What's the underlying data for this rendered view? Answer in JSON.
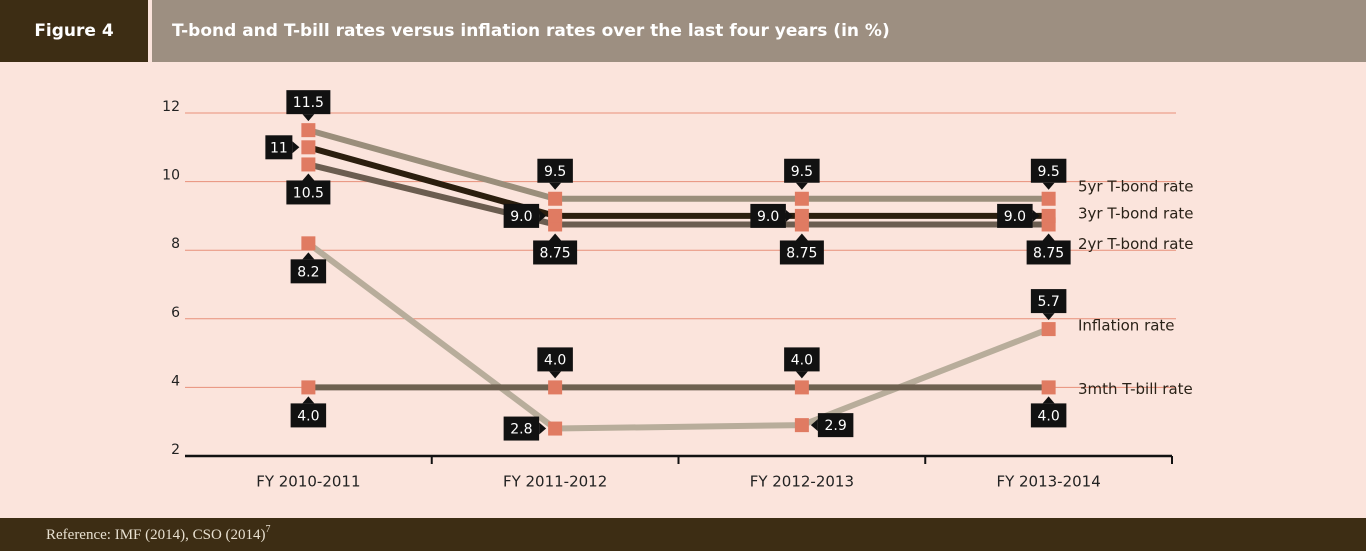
{
  "figure_label": "Figure 4",
  "reference": "Reference: IMF (2014), CSO (2014)",
  "reference_note": "7",
  "chart_data": {
    "type": "line",
    "title": "T-bond and T-bill rates versus inflation rates over the last four years (in %)",
    "categories": [
      "FY 2010-2011",
      "FY 2011-2012",
      "FY 2012-2013",
      "FY 2013-2014"
    ],
    "ylim": [
      2,
      12
    ],
    "yticks": [
      2,
      4,
      6,
      8,
      10,
      12
    ],
    "grid": true,
    "marker_color": "#e07b62",
    "series": [
      {
        "name": "Inflation rate",
        "color": "#b8ad9b",
        "values": [
          8.2,
          2.8,
          2.9,
          5.7
        ],
        "value_labels": [
          "8.2",
          "2.8",
          "2.9",
          "5.7"
        ]
      },
      {
        "name": "3mth T-bill rate",
        "color": "#6e6150",
        "values": [
          4,
          4,
          4,
          4
        ],
        "value_labels": [
          "4.0",
          "4.0",
          "4.0",
          "4.0"
        ]
      },
      {
        "name": "2yr T-bond rate",
        "color": "#6b5d50",
        "values": [
          10.5,
          8.75,
          8.75,
          8.75
        ],
        "value_labels": [
          "10.5",
          "8.75",
          "8.75",
          "8.75"
        ]
      },
      {
        "name": "3yr T-bond rate",
        "color": "#2b1e0e",
        "values": [
          11,
          9,
          9,
          9
        ],
        "value_labels": [
          "11",
          "9.0",
          "9.0",
          "9.0"
        ]
      },
      {
        "name": "5yr T-bond rate",
        "color": "#9a8e7b",
        "values": [
          11.5,
          9.5,
          9.5,
          9.5
        ],
        "value_labels": [
          "11.5",
          "9.5",
          "9.5",
          "9.5"
        ]
      }
    ]
  }
}
